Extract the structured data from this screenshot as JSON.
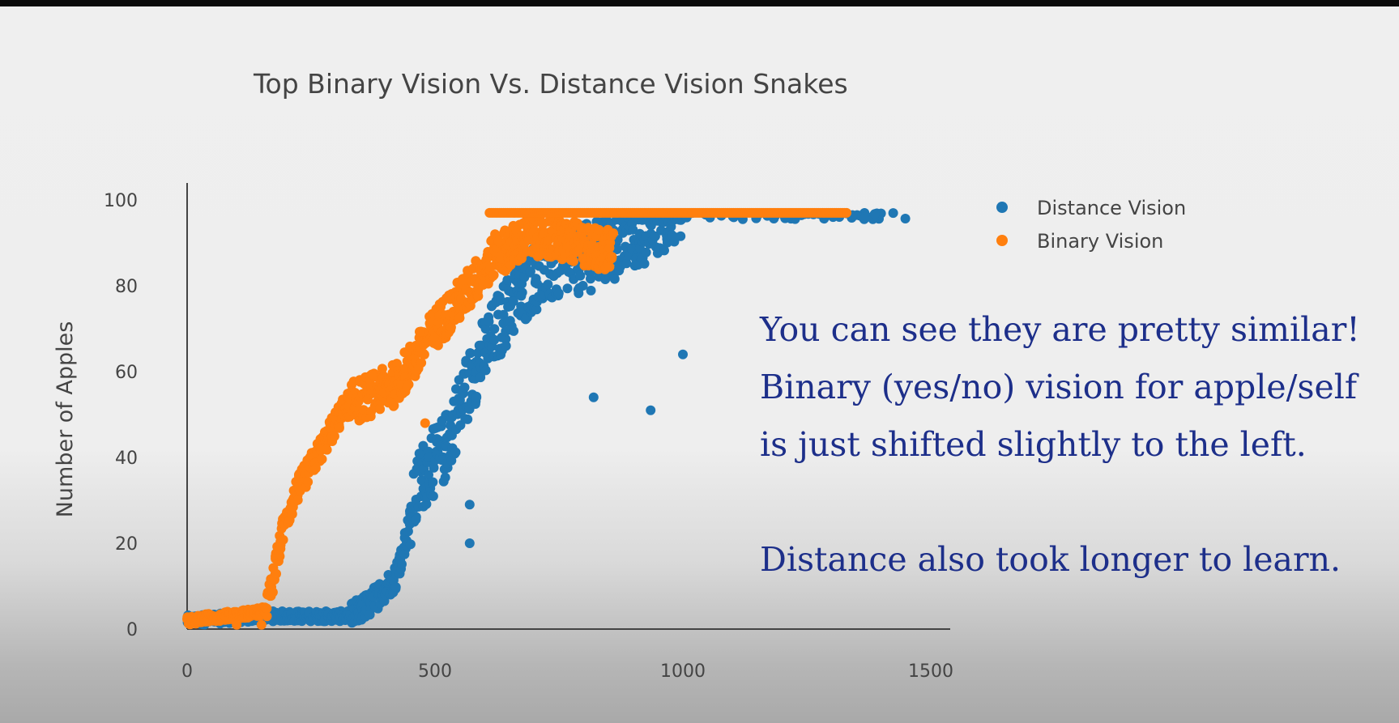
{
  "chart_data": {
    "type": "scatter",
    "title": "Top Binary Vision Vs. Distance Vision Snakes",
    "xlabel": "",
    "ylabel": "Number of Apples",
    "xlim": [
      0,
      1550
    ],
    "ylim": [
      0,
      100
    ],
    "x_ticks": [
      "0",
      "500",
      "1000",
      "1500"
    ],
    "y_ticks": [
      "0",
      "20",
      "40",
      "60",
      "80",
      "100"
    ],
    "grid": false,
    "legend_position": "top-right",
    "series": [
      {
        "name": "Distance Vision",
        "color": "#1f77b4",
        "trend": [
          [
            0,
            2
          ],
          [
            150,
            3
          ],
          [
            330,
            3
          ],
          [
            370,
            6
          ],
          [
            420,
            12
          ],
          [
            450,
            25
          ],
          [
            470,
            35
          ],
          [
            520,
            42
          ],
          [
            560,
            55
          ],
          [
            600,
            65
          ],
          [
            650,
            75
          ],
          [
            700,
            82
          ],
          [
            760,
            85
          ],
          [
            850,
            88
          ],
          [
            950,
            95
          ],
          [
            1450,
            97
          ]
        ],
        "outliers": [
          [
            570,
            20
          ],
          [
            570,
            29
          ],
          [
            820,
            54
          ],
          [
            935,
            51
          ],
          [
            1000,
            64
          ]
        ]
      },
      {
        "name": "Binary Vision",
        "color": "#ff7f0e",
        "trend": [
          [
            0,
            2
          ],
          [
            150,
            4
          ],
          [
            160,
            5
          ],
          [
            175,
            12
          ],
          [
            190,
            22
          ],
          [
            220,
            32
          ],
          [
            260,
            40
          ],
          [
            290,
            46
          ],
          [
            320,
            52
          ],
          [
            360,
            54
          ],
          [
            420,
            57
          ],
          [
            460,
            63
          ],
          [
            500,
            70
          ],
          [
            560,
            78
          ],
          [
            620,
            87
          ],
          [
            700,
            92
          ],
          [
            860,
            88
          ]
        ],
        "plateau": [
          [
            610,
            97
          ],
          [
            1330,
            97
          ]
        ],
        "outliers": [
          [
            100,
            1
          ],
          [
            150,
            1
          ],
          [
            480,
            48
          ]
        ]
      }
    ]
  },
  "annotation": {
    "line1": "You can see they are pretty similar!",
    "line2": "Binary (yes/no) vision for apple/self",
    "line3": "is just shifted slightly to the left.",
    "line4": "Distance also took longer to learn."
  }
}
